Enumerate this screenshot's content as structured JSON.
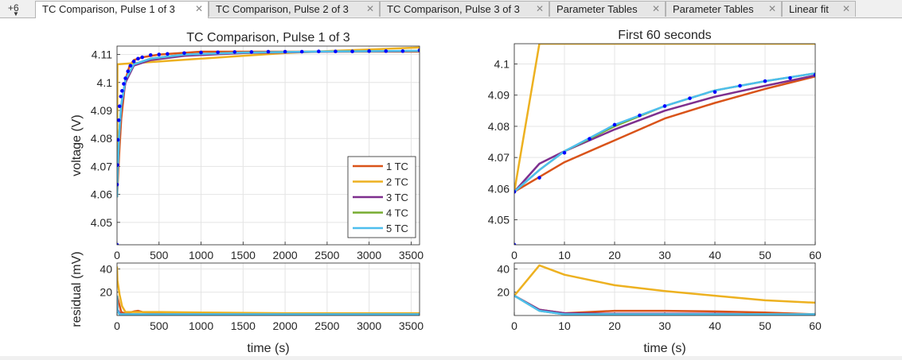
{
  "tabs": {
    "overflow_label": "+6",
    "items": [
      {
        "label": "TC Comparison, Pulse 1 of 3",
        "active": true
      },
      {
        "label": "TC Comparison, Pulse 2 of 3",
        "active": false
      },
      {
        "label": "TC Comparison, Pulse 3 of 3",
        "active": false
      },
      {
        "label": "Parameter Tables",
        "active": false
      },
      {
        "label": "Parameter Tables",
        "active": false
      },
      {
        "label": "Linear fit",
        "active": false
      }
    ]
  },
  "colors": {
    "1 TC": "#d95319",
    "2 TC": "#edb120",
    "3 TC": "#7e2f8e",
    "4 TC": "#77ac30",
    "5 TC": "#4dbeee",
    "data": "#0000ff"
  },
  "chart_data": [
    {
      "type": "line",
      "title": "TC Comparison, Pulse 1 of 3",
      "xlabel": "",
      "ylabel": "voltage (V)",
      "xlim": [
        0,
        3600
      ],
      "ylim": [
        4.042,
        4.113
      ],
      "xticks": [
        "0",
        "500",
        "1000",
        "1500",
        "2000",
        "2500",
        "3000",
        "3500"
      ],
      "yticks": [
        "4.05",
        "4.06",
        "4.07",
        "4.08",
        "4.09",
        "4.1",
        "4.11"
      ],
      "grid": true,
      "legend": {
        "position": "bottom-right",
        "entries": [
          "1 TC",
          "2 TC",
          "3 TC",
          "4 TC",
          "5 TC"
        ]
      },
      "series": [
        {
          "name": "1 TC",
          "x": [
            0,
            25,
            50,
            100,
            150,
            200,
            300,
            500,
            1000,
            2000,
            3000,
            3600
          ],
          "y": [
            4.059,
            4.074,
            4.087,
            4.101,
            4.106,
            4.108,
            4.109,
            4.11,
            4.111,
            4.111,
            4.111,
            4.111
          ]
        },
        {
          "name": "2 TC",
          "x": [
            0,
            5,
            500,
            1000,
            1500,
            2000,
            2500,
            3000,
            3600
          ],
          "y": [
            4.059,
            4.1065,
            4.1075,
            4.1085,
            4.1095,
            4.1105,
            4.1112,
            4.1118,
            4.1125
          ]
        },
        {
          "name": "3 TC",
          "x": [
            0,
            5,
            25,
            50,
            100,
            200,
            400,
            800,
            1500,
            2500,
            3600
          ],
          "y": [
            4.059,
            4.068,
            4.08,
            4.091,
            4.1,
            4.106,
            4.108,
            4.1095,
            4.1105,
            4.111,
            4.1112
          ]
        },
        {
          "name": "4 TC",
          "x": [
            0,
            5,
            25,
            50,
            100,
            200,
            400,
            800,
            1500,
            2500,
            3600
          ],
          "y": [
            4.059,
            4.066,
            4.081,
            4.092,
            4.101,
            4.1065,
            4.1085,
            4.11,
            4.1107,
            4.1111,
            4.1113
          ]
        },
        {
          "name": "5 TC",
          "x": [
            0,
            5,
            25,
            50,
            100,
            200,
            400,
            800,
            1500,
            2500,
            3600
          ],
          "y": [
            4.059,
            4.066,
            4.081,
            4.092,
            4.101,
            4.1065,
            4.1085,
            4.11,
            4.1107,
            4.1111,
            4.1113
          ]
        }
      ],
      "data_points": {
        "x": [
          0,
          0,
          5,
          10,
          20,
          30,
          45,
          60,
          80,
          100,
          130,
          160,
          200,
          250,
          300,
          400,
          500,
          600,
          800,
          1000,
          1200,
          1400,
          1600,
          1800,
          2000,
          2200,
          2400,
          2600,
          2800,
          3000,
          3200,
          3400,
          3600
        ],
        "y": [
          4.042,
          4.0635,
          4.0705,
          4.0795,
          4.0865,
          4.0915,
          4.095,
          4.097,
          4.0995,
          4.1015,
          4.104,
          4.106,
          4.1075,
          4.1085,
          4.109,
          4.1098,
          4.11,
          4.1102,
          4.1105,
          4.1107,
          4.1108,
          4.1109,
          4.1109,
          4.111,
          4.111,
          4.111,
          4.1111,
          4.1111,
          4.1111,
          4.1112,
          4.1112,
          4.1112,
          4.1115
        ]
      }
    },
    {
      "type": "line",
      "title": "",
      "xlabel": "time (s)",
      "ylabel": "residual (mV)",
      "xlim": [
        0,
        3600
      ],
      "ylim": [
        0,
        45
      ],
      "xticks": [
        "0",
        "500",
        "1000",
        "1500",
        "2000",
        "2500",
        "3000",
        "3500"
      ],
      "yticks": [
        "20",
        "40"
      ],
      "grid": true,
      "series": [
        {
          "name": "1 TC",
          "x": [
            0,
            50,
            100,
            150,
            200,
            250,
            300,
            500,
            1000,
            2000,
            3000,
            3600
          ],
          "y": [
            17,
            3,
            1.5,
            2.5,
            3.5,
            4,
            3,
            2,
            1.5,
            1.5,
            1.5,
            1.5
          ]
        },
        {
          "name": "2 TC",
          "x": [
            0,
            5,
            30,
            60,
            100,
            200,
            500,
            1000,
            2000,
            3000,
            3600
          ],
          "y": [
            42,
            30,
            18,
            8,
            3,
            3,
            3,
            2.5,
            2,
            2,
            2
          ]
        },
        {
          "name": "3 TC",
          "x": [
            0,
            5,
            30,
            60,
            100,
            200,
            500,
            1000,
            2000,
            3000,
            3600
          ],
          "y": [
            17,
            5,
            2,
            1,
            1,
            1,
            1,
            1,
            1,
            1,
            1
          ]
        },
        {
          "name": "4 TC",
          "x": [
            0,
            5,
            30,
            60,
            100,
            200,
            500,
            1000,
            2000,
            3000,
            3600
          ],
          "y": [
            17,
            4,
            1,
            1,
            1,
            1,
            1,
            1,
            1,
            1,
            1
          ]
        },
        {
          "name": "5 TC",
          "x": [
            0,
            5,
            30,
            60,
            100,
            200,
            500,
            1000,
            2000,
            3000,
            3600
          ],
          "y": [
            17,
            4,
            1,
            1,
            1,
            1,
            1,
            1,
            1,
            1,
            1
          ]
        }
      ]
    },
    {
      "type": "line",
      "title": "First 60 seconds",
      "xlabel": "",
      "ylabel": "",
      "xlim": [
        0,
        60
      ],
      "ylim": [
        4.042,
        4.1065
      ],
      "xticks": [
        "0",
        "10",
        "20",
        "30",
        "40",
        "50",
        "60"
      ],
      "yticks": [
        "4.05",
        "4.06",
        "4.07",
        "4.08",
        "4.09",
        "4.1"
      ],
      "grid": true,
      "series": [
        {
          "name": "1 TC",
          "x": [
            0,
            10,
            20,
            30,
            40,
            50,
            60
          ],
          "y": [
            4.059,
            4.0685,
            4.0755,
            4.0825,
            4.0875,
            4.092,
            4.096
          ]
        },
        {
          "name": "2 TC",
          "x": [
            0,
            5,
            10,
            20,
            30,
            40,
            50,
            60
          ],
          "y": [
            4.059,
            4.1065,
            4.1065,
            4.1065,
            4.1065,
            4.1065,
            4.1065,
            4.1065
          ]
        },
        {
          "name": "3 TC",
          "x": [
            0,
            5,
            10,
            20,
            30,
            40,
            50,
            60
          ],
          "y": [
            4.059,
            4.068,
            4.072,
            4.079,
            4.085,
            4.0895,
            4.093,
            4.0963
          ]
        },
        {
          "name": "4 TC",
          "x": [
            0,
            5,
            10,
            20,
            30,
            40,
            50,
            60
          ],
          "y": [
            4.059,
            4.066,
            4.072,
            4.08,
            4.0865,
            4.0915,
            4.0945,
            4.097
          ]
        },
        {
          "name": "5 TC",
          "x": [
            0,
            5,
            10,
            20,
            30,
            40,
            50,
            60
          ],
          "y": [
            4.059,
            4.066,
            4.072,
            4.0805,
            4.0865,
            4.0915,
            4.0945,
            4.097
          ]
        }
      ],
      "data_points": {
        "x": [
          0,
          0,
          5,
          10,
          15,
          20,
          25,
          30,
          35,
          40,
          45,
          50,
          55,
          60
        ],
        "y": [
          4.042,
          4.059,
          4.0635,
          4.0715,
          4.076,
          4.0805,
          4.0835,
          4.0865,
          4.089,
          4.091,
          4.093,
          4.0945,
          4.0955,
          4.0965
        ]
      }
    },
    {
      "type": "line",
      "title": "",
      "xlabel": "time (s)",
      "ylabel": "",
      "xlim": [
        0,
        60
      ],
      "ylim": [
        0,
        45
      ],
      "xticks": [
        "0",
        "10",
        "20",
        "30",
        "40",
        "50",
        "60"
      ],
      "yticks": [
        "20",
        "40"
      ],
      "grid": true,
      "series": [
        {
          "name": "1 TC",
          "x": [
            0,
            5,
            10,
            20,
            30,
            40,
            50,
            60
          ],
          "y": [
            17,
            5,
            2,
            4,
            4,
            3.5,
            2.5,
            1
          ]
        },
        {
          "name": "2 TC",
          "x": [
            0,
            5,
            10,
            20,
            30,
            40,
            50,
            60
          ],
          "y": [
            17,
            43,
            35,
            26,
            21,
            17,
            13,
            11
          ]
        },
        {
          "name": "3 TC",
          "x": [
            0,
            5,
            10,
            20,
            30,
            40,
            50,
            60
          ],
          "y": [
            17,
            5,
            2,
            1.5,
            1.5,
            1.5,
            1,
            1
          ]
        },
        {
          "name": "4 TC",
          "x": [
            0,
            5,
            10,
            20,
            30,
            40,
            50,
            60
          ],
          "y": [
            17,
            4,
            1,
            1,
            1,
            1,
            1,
            1
          ]
        },
        {
          "name": "5 TC",
          "x": [
            0,
            5,
            10,
            20,
            30,
            40,
            50,
            60
          ],
          "y": [
            17,
            4,
            1,
            1,
            1,
            1,
            1,
            1
          ]
        }
      ]
    }
  ]
}
